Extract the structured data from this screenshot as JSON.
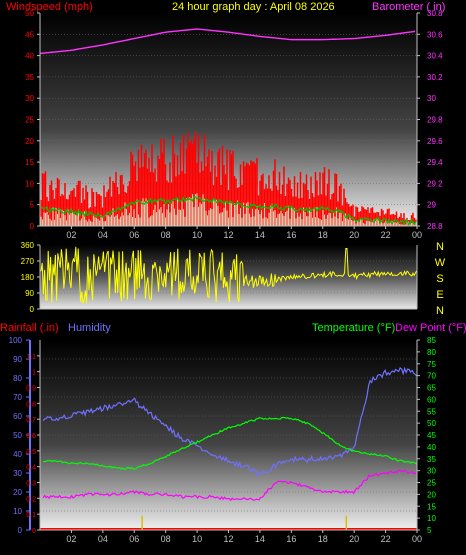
{
  "header": {
    "left_title": "Windspeed (mph)",
    "center_title": "24 hour graph day : April 08 2026",
    "right_title": "Barometer ( in)"
  },
  "colors": {
    "wind": "#ff0000",
    "wind_avg": "#00c000",
    "wind_light": "#d8ffd8",
    "barometer": "#ff33ff",
    "direction": "#ffff00",
    "rainfall": "#ff0000",
    "humidity": "#7070ff",
    "temperature": "#00ff00",
    "dewpoint": "#ff00ff",
    "axis": "#c0c0c0"
  },
  "x_ticks": [
    "02",
    "04",
    "06",
    "08",
    "10",
    "12",
    "14",
    "16",
    "18",
    "20",
    "22",
    "00"
  ],
  "wind_panel": {
    "left_ticks": [
      "0",
      "5",
      "10",
      "15",
      "20",
      "25",
      "30",
      "35",
      "40",
      "45",
      "50"
    ],
    "right_ticks": [
      "28.8",
      "29",
      "29.2",
      "29.4",
      "29.6",
      "29.8",
      "30",
      "30.2",
      "30.4",
      "30.6",
      "30.8"
    ]
  },
  "direction_panel": {
    "left_ticks": [
      "0",
      "90",
      "180",
      "270",
      "360"
    ],
    "compass": [
      "N",
      "W",
      "S",
      "E",
      "N"
    ]
  },
  "bottom_panel": {
    "rain_label": "Rainfall (.in)",
    "humidity_label": "Humidity",
    "temperature_label": "Temperature (°F)",
    "dewpoint_label": "Dew Point (°F)",
    "humidity_ticks": [
      "0",
      "10",
      "20",
      "30",
      "40",
      "50",
      "60",
      "70",
      "80",
      "90",
      "100"
    ],
    "rain_ticks": [
      "0",
      "0.1",
      "0.2",
      "0.3",
      "0.4",
      "0.5",
      "0.6",
      "0.7",
      "0.8",
      "0.9",
      "1",
      "1.1"
    ],
    "temp_ticks": [
      "5",
      "10",
      "15",
      "20",
      "25",
      "30",
      "35",
      "40",
      "45",
      "50",
      "55",
      "60",
      "65",
      "70",
      "75",
      "80",
      "85"
    ]
  },
  "chart_data": [
    {
      "type": "area",
      "xlim": [
        0,
        24
      ],
      "ylim": [
        0,
        50
      ],
      "y2lim": [
        28.8,
        30.8
      ],
      "series": [
        {
          "name": "Windspeed (mph)",
          "x": [
            0,
            1,
            2,
            3,
            4,
            5,
            6,
            7,
            8,
            9,
            10,
            11,
            12,
            13,
            14,
            15,
            16,
            17,
            18,
            19,
            20,
            21,
            22,
            23,
            24
          ],
          "values": [
            9,
            8,
            8,
            6,
            6,
            9,
            12,
            13,
            13,
            14,
            14,
            13,
            12,
            11,
            10,
            10,
            9,
            8,
            9,
            8,
            3,
            3,
            3,
            2,
            2
          ]
        },
        {
          "name": "Barometer ( in)",
          "x": [
            0,
            2,
            4,
            6,
            8,
            10,
            12,
            14,
            16,
            18,
            20,
            22,
            24
          ],
          "values": [
            30.42,
            30.45,
            30.5,
            30.56,
            30.62,
            30.65,
            30.62,
            30.58,
            30.55,
            30.55,
            30.56,
            30.59,
            30.63
          ]
        }
      ]
    },
    {
      "type": "line",
      "xlim": [
        0,
        24
      ],
      "ylim": [
        0,
        360
      ],
      "series": [
        {
          "name": "Wind direction",
          "x": [
            0,
            2,
            4,
            6,
            8,
            10,
            12,
            14,
            16,
            18,
            19,
            20,
            22,
            24
          ],
          "values": [
            180,
            200,
            170,
            190,
            210,
            180,
            170,
            150,
            180,
            190,
            200,
            185,
            200,
            200
          ]
        }
      ]
    },
    {
      "type": "line",
      "xlim": [
        0,
        24
      ],
      "ylim": [
        0,
        100
      ],
      "y2lim": [
        0,
        1.2
      ],
      "y3lim": [
        5,
        85
      ],
      "series": [
        {
          "name": "Humidity",
          "x": [
            0,
            1,
            2,
            3,
            4,
            5,
            6,
            7,
            8,
            9,
            10,
            11,
            12,
            13,
            14,
            15,
            16,
            17,
            18,
            19,
            20,
            20.5,
            21,
            22,
            23,
            24
          ],
          "values": [
            59,
            59,
            60,
            62,
            64,
            66,
            68,
            61,
            55,
            48,
            44,
            40,
            36,
            34,
            29,
            34,
            37,
            37,
            38,
            38,
            43,
            60,
            78,
            83,
            84,
            82
          ]
        },
        {
          "name": "Temperature (°F)",
          "x": [
            0,
            1,
            2,
            3,
            4,
            5,
            6,
            7,
            8,
            9,
            10,
            11,
            12,
            13,
            14,
            15,
            16,
            17,
            18,
            19,
            20,
            21,
            22,
            23,
            24
          ],
          "values": [
            34,
            34,
            33,
            33,
            32,
            31,
            31,
            33,
            36,
            39,
            42,
            45,
            48,
            50,
            52,
            52,
            52,
            50,
            46,
            41,
            38,
            37,
            36,
            34,
            33
          ]
        },
        {
          "name": "Dew Point (°F)",
          "x": [
            0,
            1,
            2,
            3,
            4,
            5,
            6,
            7,
            8,
            9,
            10,
            11,
            12,
            13,
            14,
            15,
            16,
            17,
            18,
            19,
            20,
            21,
            22,
            23,
            24
          ],
          "values": [
            19,
            19,
            19,
            20,
            20,
            20,
            21,
            20,
            20,
            19,
            19,
            19,
            18,
            18,
            18,
            25,
            25,
            23,
            21,
            21,
            21,
            28,
            29,
            30,
            29
          ]
        },
        {
          "name": "Rainfall (.in)",
          "x": [
            6.5,
            19.5
          ],
          "values": [
            0.09,
            0.09
          ]
        }
      ]
    }
  ]
}
